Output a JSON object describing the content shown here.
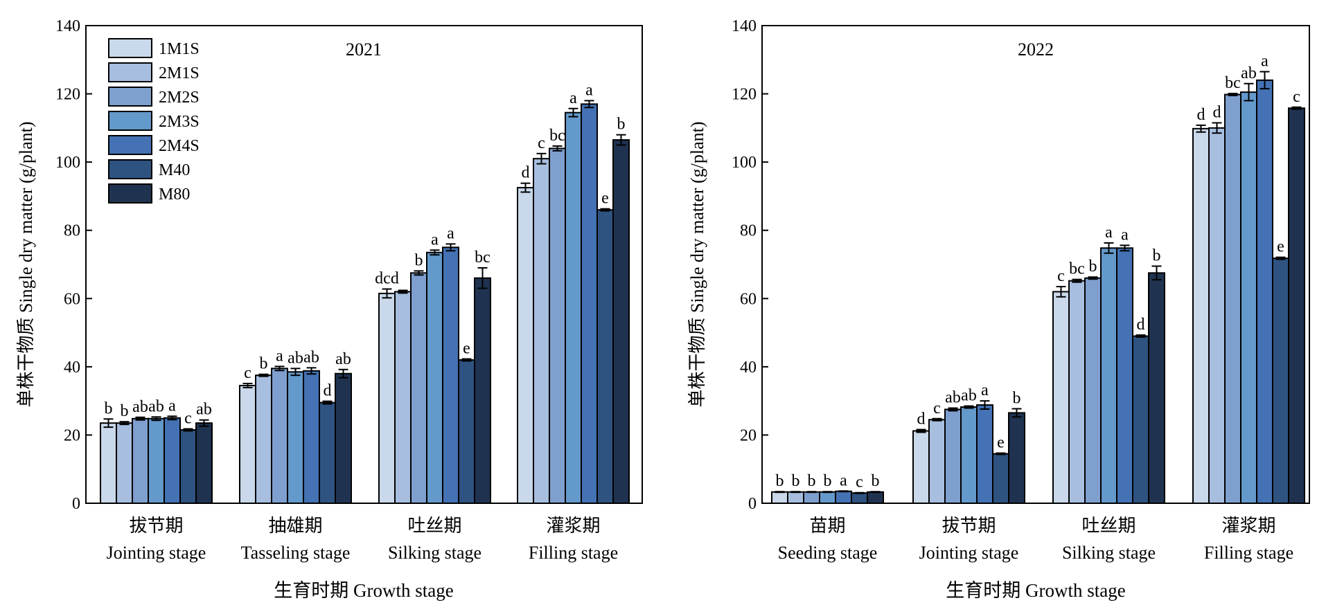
{
  "chart_data": [
    {
      "type": "bar",
      "year_label": "2021",
      "xlabel": "生育时期 Growth stage",
      "ylabel": "单株干物质 Single dry matter (g/plant)",
      "ylim": [
        0,
        140
      ],
      "yticks": [
        0,
        20,
        40,
        60,
        80,
        100,
        120,
        140
      ],
      "legend": "top-left",
      "categories": [
        {
          "cn": "拔节期",
          "en": "Jointing stage"
        },
        {
          "cn": "抽雄期",
          "en": "Tasseling stage"
        },
        {
          "cn": "吐丝期",
          "en": "Silking stage"
        },
        {
          "cn": "灌浆期",
          "en": "Filling stage"
        }
      ],
      "series": [
        {
          "name": "1M1S",
          "color": "#c9d8ea",
          "values": [
            23.5,
            34.5,
            61.5,
            92.5
          ],
          "errors": [
            1.2,
            0.6,
            1.3,
            1.3
          ],
          "letters": [
            "b",
            "c",
            "dcd",
            "d"
          ]
        },
        {
          "name": "2M1S",
          "color": "#a7bedf",
          "values": [
            23.5,
            37.5,
            62.0,
            101.0
          ],
          "errors": [
            0.4,
            0.3,
            0.4,
            1.5
          ],
          "letters": [
            "b",
            "b",
            "",
            "c"
          ]
        },
        {
          "name": "2M2S",
          "color": "#7f9fcf",
          "values": [
            24.8,
            39.5,
            67.5,
            104.0
          ],
          "errors": [
            0.4,
            0.6,
            0.6,
            0.7
          ],
          "letters": [
            "ab",
            "a",
            "b",
            "bc"
          ]
        },
        {
          "name": "2M3S",
          "color": "#6499cb",
          "values": [
            24.8,
            38.5,
            73.5,
            114.5
          ],
          "errors": [
            0.5,
            1.0,
            0.7,
            1.2
          ],
          "letters": [
            "ab",
            "ab",
            "a",
            "a"
          ]
        },
        {
          "name": "2M4S",
          "color": "#4472b4",
          "values": [
            25.0,
            38.8,
            75.0,
            117.0
          ],
          "errors": [
            0.5,
            0.9,
            1.0,
            1.0
          ],
          "letters": [
            "a",
            "ab",
            "a",
            "a"
          ]
        },
        {
          "name": "M40",
          "color": "#2f5381",
          "values": [
            21.5,
            29.5,
            42.0,
            86.0
          ],
          "errors": [
            0.3,
            0.4,
            0.3,
            0.3
          ],
          "letters": [
            "c",
            "d",
            "e",
            "e"
          ]
        },
        {
          "name": "M80",
          "color": "#1f3350",
          "values": [
            23.5,
            38.0,
            66.0,
            106.5
          ],
          "errors": [
            0.9,
            1.2,
            3.0,
            1.5
          ],
          "letters": [
            "ab",
            "ab",
            "bc",
            "b"
          ]
        }
      ]
    },
    {
      "type": "bar",
      "year_label": "2022",
      "xlabel": "生育时期 Growth stage",
      "ylabel": "单株干物质 Single dry matter (g/plant)",
      "ylim": [
        0,
        140
      ],
      "yticks": [
        0,
        20,
        40,
        60,
        80,
        100,
        120,
        140
      ],
      "categories": [
        {
          "cn": "苗期",
          "en": "Seeding stage"
        },
        {
          "cn": "拔节期",
          "en": "Jointing stage"
        },
        {
          "cn": "吐丝期",
          "en": "Silking stage"
        },
        {
          "cn": "灌浆期",
          "en": "Filling stage"
        }
      ],
      "series": [
        {
          "name": "1M1S",
          "color": "#c9d8ea",
          "values": [
            3.3,
            21.2,
            62.0,
            109.8
          ],
          "errors": [
            0.1,
            0.4,
            1.5,
            1.0
          ],
          "letters": [
            "b",
            "d",
            "c",
            "d"
          ]
        },
        {
          "name": "2M1S",
          "color": "#a7bedf",
          "values": [
            3.3,
            24.5,
            65.2,
            110.0
          ],
          "errors": [
            0.1,
            0.3,
            0.4,
            1.5
          ],
          "letters": [
            "b",
            "c",
            "bc",
            "d"
          ]
        },
        {
          "name": "2M2S",
          "color": "#7f9fcf",
          "values": [
            3.3,
            27.5,
            66.0,
            119.8
          ],
          "errors": [
            0.1,
            0.4,
            0.3,
            0.3
          ],
          "letters": [
            "b",
            "ab",
            "b",
            "bc"
          ]
        },
        {
          "name": "2M3S",
          "color": "#6499cb",
          "values": [
            3.3,
            28.2,
            74.8,
            120.5
          ],
          "errors": [
            0.1,
            0.3,
            1.5,
            2.5
          ],
          "letters": [
            "b",
            "ab",
            "a",
            "ab"
          ]
        },
        {
          "name": "2M4S",
          "color": "#4472b4",
          "values": [
            3.5,
            28.8,
            74.8,
            124.0
          ],
          "errors": [
            0.1,
            1.2,
            0.8,
            2.5
          ],
          "letters": [
            "a",
            "a",
            "a",
            "a"
          ]
        },
        {
          "name": "M40",
          "color": "#2f5381",
          "values": [
            3.0,
            14.5,
            49.0,
            71.8
          ],
          "errors": [
            0.1,
            0.2,
            0.3,
            0.3
          ],
          "letters": [
            "c",
            "e",
            "d",
            "e"
          ]
        },
        {
          "name": "M80",
          "color": "#1f3350",
          "values": [
            3.3,
            26.5,
            67.5,
            115.8
          ],
          "errors": [
            0.1,
            1.2,
            2.0,
            0.3
          ],
          "letters": [
            "b",
            "b",
            "b",
            "c"
          ]
        }
      ]
    }
  ]
}
